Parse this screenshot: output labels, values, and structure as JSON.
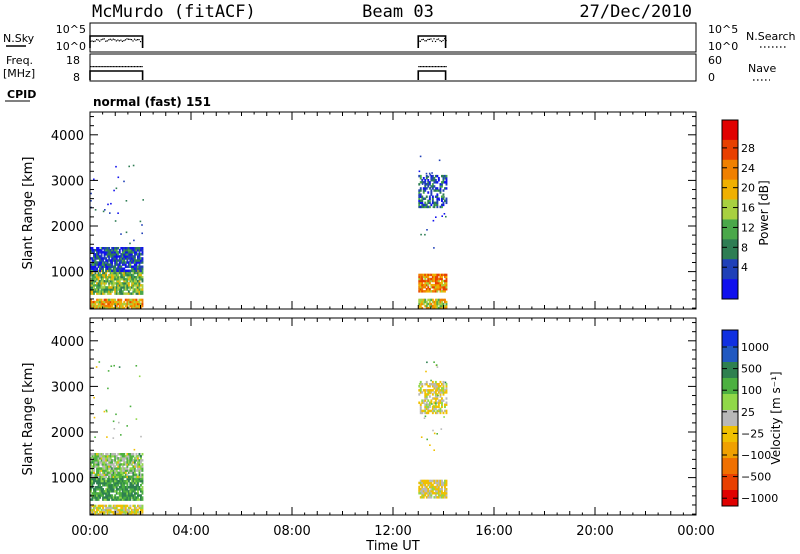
{
  "header": {
    "station": "McMurdo (fitACF)",
    "beam": "Beam 03",
    "date": "27/Dec/2010"
  },
  "small_panels": {
    "nsky": {
      "left_label": "N.Sky",
      "left_ticks": [
        "10^5",
        "10^0"
      ],
      "right_label": "N.Search",
      "right_ticks": [
        "10^5",
        "10^0"
      ]
    },
    "freq": {
      "left_label_1": "Freq.",
      "left_label_2": "[MHz]",
      "left_ticks": [
        "18",
        "8"
      ],
      "right_label": "Nave",
      "right_ticks": [
        "60",
        "0"
      ]
    },
    "cpid": {
      "left_label": "CPID",
      "value": "normal (fast) 151"
    }
  },
  "axes": {
    "y_label": "Slant Range [km]",
    "y_ticks": [
      "4000",
      "3000",
      "2000",
      "1000"
    ],
    "x_label": "Time UT",
    "x_ticks": [
      "00:00",
      "04:00",
      "08:00",
      "12:00",
      "16:00",
      "20:00",
      "00:00"
    ]
  },
  "colorbars": {
    "power": {
      "label": "Power [dB]",
      "ticks": [
        "28",
        "24",
        "20",
        "16",
        "12",
        "8",
        "4"
      ],
      "colors": [
        "#1010ee",
        "#2040b8",
        "#2e7d54",
        "#4aa84a",
        "#a8d040",
        "#f0b000",
        "#f08000",
        "#e84000",
        "#e00000"
      ]
    },
    "velocity": {
      "label": "Velocity [m s⁻¹]",
      "ticks": [
        "1000",
        "500",
        "100",
        "25",
        "−25",
        "−100",
        "−500",
        "−1000"
      ],
      "colors": [
        "#1030e0",
        "#2058c0",
        "#2e8050",
        "#4cb040",
        "#90d848",
        "#b8b8b8",
        "#f0c000",
        "#f0a000",
        "#f07000",
        "#e84000",
        "#e00000"
      ]
    }
  },
  "chart_data": [
    {
      "type": "heatmap",
      "title": "Power [dB]",
      "xlabel": "Time UT",
      "ylabel": "Slant Range [km]",
      "xlim": [
        "00:00",
        "24:00"
      ],
      "ylim": [
        180,
        4500
      ],
      "color_scale": [
        0,
        32
      ],
      "scan_intervals": [
        {
          "start": "00:00",
          "end": "02:05"
        },
        {
          "start": "13:00",
          "end": "14:05"
        }
      ],
      "regions": [
        {
          "t_start": "00:00",
          "t_end": "02:05",
          "range_min": 180,
          "range_max": 400,
          "typical_power_db": 20
        },
        {
          "t_start": "00:00",
          "t_end": "02:05",
          "range_min": 500,
          "range_max": 1000,
          "typical_power_db": 14
        },
        {
          "t_start": "00:00",
          "t_end": "02:05",
          "range_min": 1000,
          "range_max": 1500,
          "typical_power_db": 6
        },
        {
          "t_start": "13:00",
          "t_end": "14:05",
          "range_min": 180,
          "range_max": 400,
          "typical_power_db": 18
        },
        {
          "t_start": "13:00",
          "t_end": "14:05",
          "range_min": 550,
          "range_max": 950,
          "typical_power_db": 22
        },
        {
          "t_start": "13:00",
          "t_end": "14:05",
          "range_min": 2400,
          "range_max": 3100,
          "typical_power_db": 6
        }
      ]
    },
    {
      "type": "heatmap",
      "title": "Velocity [m s⁻¹]",
      "xlabel": "Time UT",
      "ylabel": "Slant Range [km]",
      "xlim": [
        "00:00",
        "24:00"
      ],
      "ylim": [
        180,
        4500
      ],
      "color_scale": [
        -1200,
        1200
      ],
      "scan_intervals": [
        {
          "start": "00:00",
          "end": "02:05"
        },
        {
          "start": "13:00",
          "end": "14:05"
        }
      ],
      "regions": [
        {
          "t_start": "00:00",
          "t_end": "02:05",
          "range_min": 180,
          "range_max": 400,
          "typical_velocity": -100
        },
        {
          "t_start": "00:00",
          "t_end": "02:05",
          "range_min": 500,
          "range_max": 1000,
          "typical_velocity": 100
        },
        {
          "t_start": "00:00",
          "t_end": "02:05",
          "range_min": 1000,
          "range_max": 1500,
          "typical_velocity": 0
        },
        {
          "t_start": "13:00",
          "t_end": "14:05",
          "range_min": 550,
          "range_max": 950,
          "typical_velocity": -100
        },
        {
          "t_start": "13:00",
          "t_end": "14:05",
          "range_min": 2400,
          "range_max": 3100,
          "typical_velocity": -100
        }
      ]
    }
  ]
}
